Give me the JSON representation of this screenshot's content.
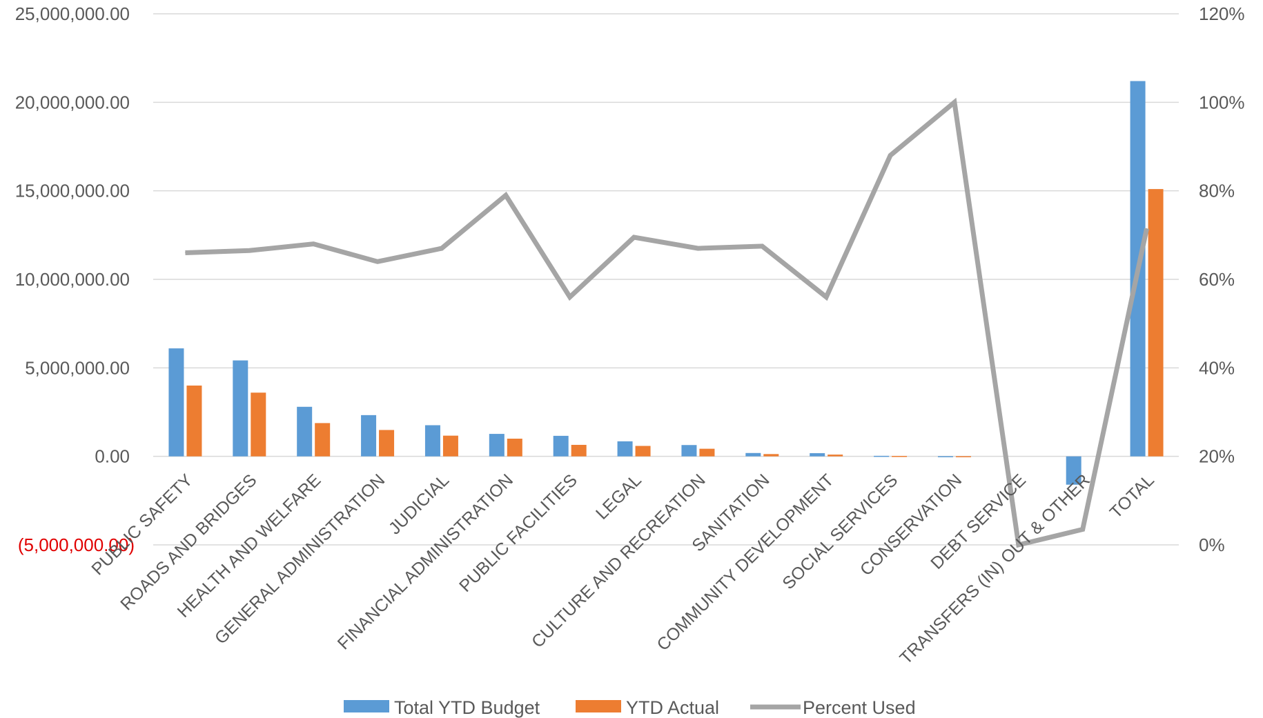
{
  "chart_data": {
    "type": "bar",
    "categories": [
      "PUBLIC SAFETY",
      "ROADS AND BRIDGES",
      "HEALTH AND WELFARE",
      "GENERAL ADMINISTRATION",
      "JUDICIAL",
      "FINANCIAL ADMINISTRATION",
      "PUBLIC FACILITIES",
      "LEGAL",
      "CULTURE AND RECREATION",
      "SANITATION",
      "COMMUNITY DEVELOPMENT",
      "SOCIAL SERVICES",
      "CONSERVATION",
      "DEBT SERVICE",
      "TRANSFERS (IN) OUT & OTHER",
      "TOTAL"
    ],
    "series": [
      {
        "name": "Total YTD Budget",
        "type": "bar",
        "axis": "left",
        "color": "#5b9bd5",
        "values": [
          6100000,
          5420000,
          2800000,
          2330000,
          1760000,
          1270000,
          1160000,
          850000,
          640000,
          190000,
          180000,
          30000,
          10000,
          0,
          -1600000,
          21200000
        ]
      },
      {
        "name": "YTD Actual",
        "type": "bar",
        "axis": "left",
        "color": "#ed7d31",
        "values": [
          4000000,
          3600000,
          1880000,
          1490000,
          1170000,
          1000000,
          650000,
          590000,
          430000,
          130000,
          100000,
          25000,
          10000,
          0,
          0,
          15100000
        ]
      },
      {
        "name": "Percent Used",
        "type": "line",
        "axis": "right",
        "color": "#a5a5a5",
        "values": [
          0.66,
          0.665,
          0.68,
          0.64,
          0.67,
          0.79,
          0.56,
          0.695,
          0.67,
          0.675,
          0.56,
          0.88,
          1.0,
          0.0,
          0.035,
          0.715
        ]
      }
    ],
    "y_left": {
      "ylim": [
        -5000000,
        25000000
      ],
      "ticks": [
        25000000,
        20000000,
        15000000,
        10000000,
        5000000,
        0,
        -5000000
      ],
      "tick_labels": [
        "25,000,000.00",
        "20,000,000.00",
        "15,000,000.00",
        "10,000,000.00",
        "5,000,000.00",
        "0.00",
        "(5,000,000.00)"
      ],
      "negative_label_color": "#e00000"
    },
    "y_right": {
      "ylim": [
        0,
        1.2
      ],
      "ticks": [
        1.2,
        1.0,
        0.8,
        0.6,
        0.4,
        0.2,
        0.0
      ],
      "tick_labels": [
        "120%",
        "100%",
        "80%",
        "60%",
        "40%",
        "20%",
        "0%"
      ]
    },
    "grid": true,
    "legend_position": "bottom-center",
    "title": "",
    "xlabel": "",
    "ylabel": ""
  }
}
